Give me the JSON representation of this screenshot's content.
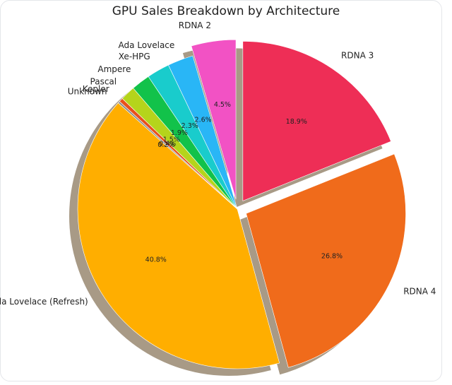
{
  "chart_data": {
    "type": "pie",
    "title": "GPU Sales Breakdown by Architecture",
    "slices": [
      {
        "label": "RDNA 3",
        "value": 18.9,
        "pct_label": "18.9%",
        "color": "#ee2e56",
        "explode": true
      },
      {
        "label": "RDNA 4",
        "value": 26.8,
        "pct_label": "26.8%",
        "color": "#f06b1b",
        "explode": true
      },
      {
        "label": "Ada Lovelace (Refresh)",
        "value": 40.8,
        "pct_label": "40.8%",
        "color": "#ffae00",
        "explode": false
      },
      {
        "label": "Unknown",
        "value": 0.2,
        "pct_label": "0.2%",
        "color": "#8c8c8c",
        "explode": false
      },
      {
        "label": "Kepler",
        "value": 0.4,
        "pct_label": "0.4%",
        "color": "#e8501c",
        "explode": false
      },
      {
        "label": "Pascal",
        "value": 1.5,
        "pct_label": "1.5%",
        "color": "#b5d41b",
        "explode": false
      },
      {
        "label": "Ampere",
        "value": 1.9,
        "pct_label": "1.9%",
        "color": "#12c24a",
        "explode": false
      },
      {
        "label": "Xe-HPG",
        "value": 2.3,
        "pct_label": "2.3%",
        "color": "#19cccc",
        "explode": false
      },
      {
        "label": "Ada Lovelace",
        "value": 2.6,
        "pct_label": "2.6%",
        "color": "#29b6f6",
        "explode": false
      },
      {
        "label": "RDNA 2",
        "value": 4.5,
        "pct_label": "4.5%",
        "color": "#f252c4",
        "explode": true
      }
    ],
    "shadow": true,
    "legend": "none"
  }
}
